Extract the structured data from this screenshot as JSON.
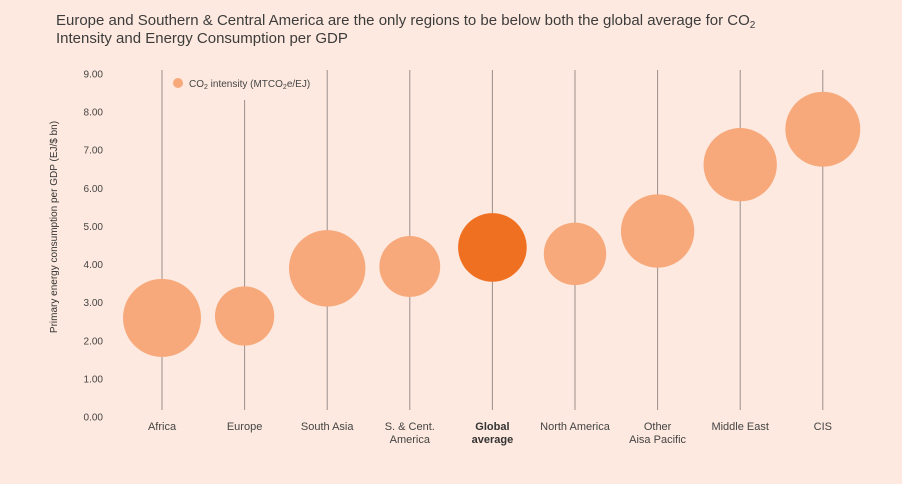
{
  "title": {
    "line1_before_sub": "Europe and Southern & Central America are the only regions to be below both the global average for CO",
    "line1_sub": "2",
    "line2": "Intensity and Energy Consumption per GDP"
  },
  "chart_data": {
    "type": "bubble",
    "title": "Europe and Southern & Central America are the only regions to be below both the global average for CO2 Intensity and Energy Consumption per GDP",
    "xlabel": "",
    "ylabel": "Primary energy consumption per GDP (EJ/$ bn)",
    "ylim": [
      0,
      9
    ],
    "y_ticks": [
      "0.00",
      "1.00",
      "2.00",
      "3.00",
      "4.00",
      "5.00",
      "6.00",
      "7.00",
      "8.00",
      "9.00"
    ],
    "grid": false,
    "legend": {
      "position": "top-left",
      "label_parts": [
        "CO",
        "2",
        " intensity (MTCO",
        "2",
        "e/EJ)"
      ]
    },
    "colors": {
      "bubble": "#f7a97b",
      "highlight": "#f07022",
      "stem": "#9a8f8a",
      "axis_text": "#444444"
    },
    "categories": [
      {
        "label_lines": [
          "Africa"
        ],
        "y": 2.6,
        "size": 1.0,
        "highlight": false
      },
      {
        "label_lines": [
          "Europe"
        ],
        "y": 2.65,
        "size": 0.76,
        "highlight": false
      },
      {
        "label_lines": [
          "South Asia"
        ],
        "y": 3.9,
        "size": 0.98,
        "highlight": false
      },
      {
        "label_lines": [
          "S. & Cent.",
          "America"
        ],
        "y": 3.95,
        "size": 0.78,
        "highlight": false
      },
      {
        "label_lines": [
          "Global",
          "average"
        ],
        "y": 4.45,
        "size": 0.88,
        "highlight": true
      },
      {
        "label_lines": [
          "North America"
        ],
        "y": 4.28,
        "size": 0.8,
        "highlight": false
      },
      {
        "label_lines": [
          "Other",
          "Aisa Pacific"
        ],
        "y": 4.88,
        "size": 0.94,
        "highlight": false
      },
      {
        "label_lines": [
          "Middle East"
        ],
        "y": 6.62,
        "size": 0.94,
        "highlight": false
      },
      {
        "label_lines": [
          "CIS"
        ],
        "y": 7.55,
        "size": 0.96,
        "highlight": false
      }
    ]
  }
}
